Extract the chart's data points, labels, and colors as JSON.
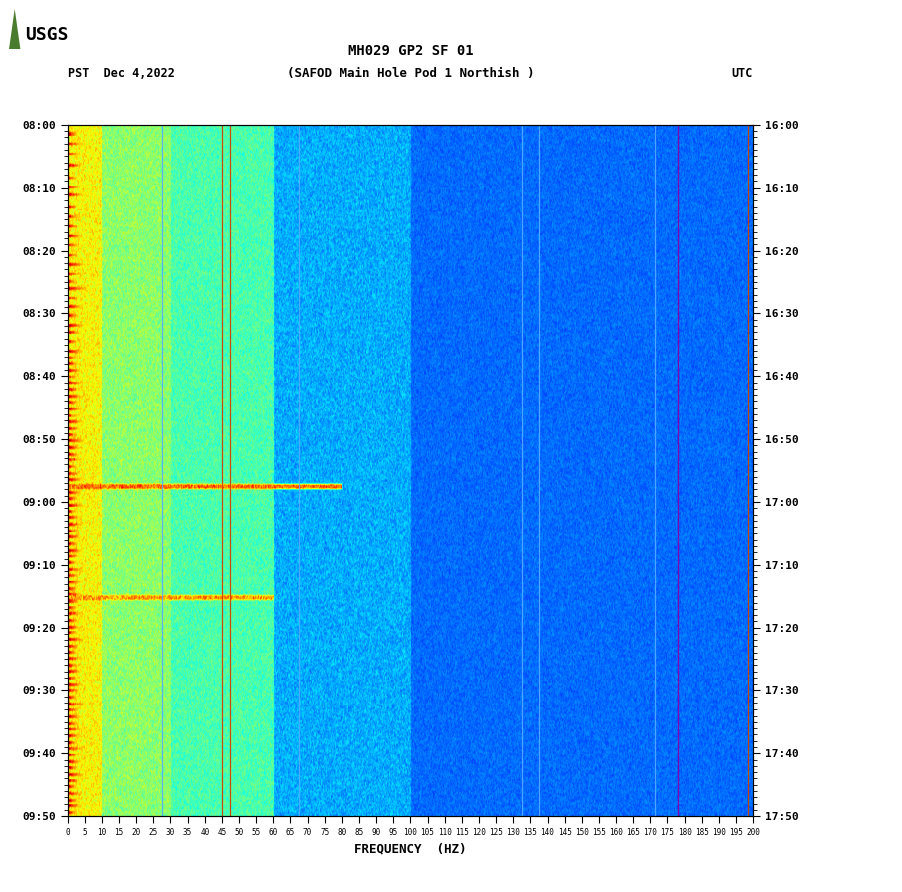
{
  "title_line1": "MH029 GP2 SF 01",
  "title_line2": "(SAFOD Main Hole Pod 1 Northish )",
  "date_label": "PST  Dec 4,2022",
  "utc_label": "UTC",
  "xlabel": "FREQUENCY  (HZ)",
  "freq_min": 0,
  "freq_max": 200,
  "ytick_labels_left": [
    "08:00",
    "08:10",
    "08:20",
    "08:30",
    "08:40",
    "08:50",
    "09:00",
    "09:10",
    "09:20",
    "09:30",
    "09:40",
    "09:50"
  ],
  "ytick_labels_right": [
    "16:00",
    "16:10",
    "16:20",
    "16:30",
    "16:40",
    "16:50",
    "17:00",
    "17:10",
    "17:20",
    "17:30",
    "17:40",
    "17:50"
  ],
  "freq_ticks": [
    0,
    5,
    10,
    15,
    20,
    25,
    30,
    35,
    40,
    45,
    50,
    55,
    60,
    65,
    70,
    75,
    80,
    85,
    90,
    95,
    100,
    105,
    110,
    115,
    120,
    125,
    130,
    135,
    140,
    145,
    150,
    155,
    160,
    165,
    170,
    175,
    180,
    185,
    190,
    195,
    200
  ],
  "colormap": "jet",
  "background_color": "#ffffff",
  "seed": 12345,
  "n_time": 720,
  "n_freq": 800,
  "fig_width": 9.02,
  "fig_height": 8.92,
  "dpi": 100,
  "orange_lines_hz": [
    45.0,
    47.5,
    198.5
  ],
  "cyan_lines_hz": [
    27.5,
    67.5,
    132.5,
    137.5,
    171.5
  ]
}
